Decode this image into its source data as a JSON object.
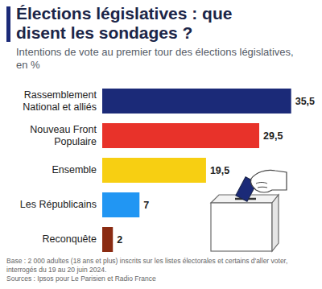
{
  "chart_data": {
    "type": "bar",
    "orientation": "horizontal",
    "title": "Élections législatives : que disent les sondages ?",
    "subtitle": "Intentions de vote au premier tour des élections législatives, en %",
    "categories": [
      "Rassemblement National et alliés",
      "Nouveau Front Populaire",
      "Ensemble",
      "Les Républicains",
      "Reconquête"
    ],
    "values": [
      35.5,
      29.5,
      19.5,
      7,
      2
    ],
    "value_labels": [
      "35,5",
      "29,5",
      "19,5",
      "7",
      "2"
    ],
    "colors": [
      "#1b2a78",
      "#e8322a",
      "#f7cf12",
      "#2196f3",
      "#8a2b12"
    ],
    "xlim": [
      0,
      36
    ],
    "grid": false,
    "data_labels": true,
    "tick_labels": false,
    "note": "Base : 2 000 adultes (18 ans et plus) inscrits sur les listes électorales et certains d'aller voter, interrogés du 19 au 20 juin 2024.",
    "source": "Sources : Ipsos pour Le Parisien et Radio France"
  }
}
